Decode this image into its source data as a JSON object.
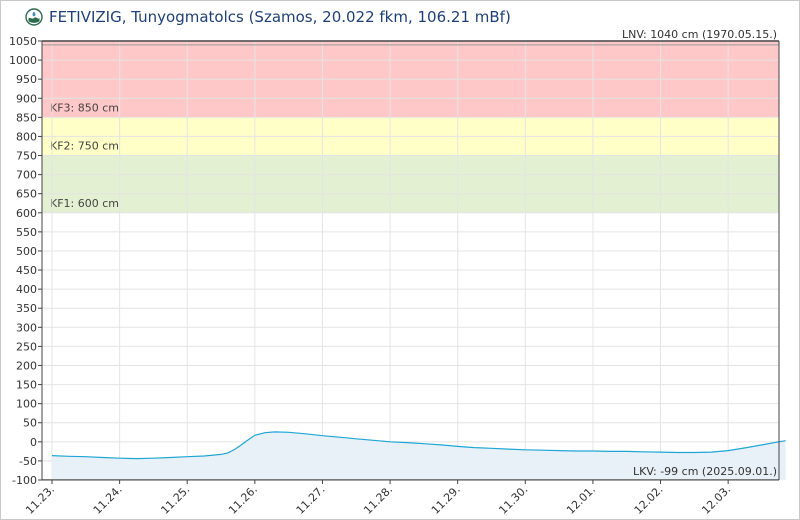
{
  "header": {
    "title": "FETIVIZIG, Tunyogmatolcs (Szamos, 20.022 fkm, 106.21 mBf)",
    "logo_icon": "water-drop-logo-icon"
  },
  "colors": {
    "kf3_zone": "#ffc8c8",
    "kf2_zone": "#ffffc8",
    "kf1_zone": "#e3f0d2",
    "series_line": "#1fa6d6",
    "series_fill": "#e9f1f8",
    "grid": "#e4e4e4",
    "axis": "#444444"
  },
  "chart_data": {
    "type": "area",
    "title": "",
    "xlabel": "",
    "ylabel": "",
    "ylim": [
      -100,
      1050
    ],
    "ystep": 50,
    "grid": true,
    "x_tick_labels": [
      "11.23.",
      "11.24.",
      "11.25.",
      "11.26.",
      "11.27.",
      "11.28.",
      "11.29.",
      "11.30.",
      "12.01.",
      "12.02.",
      "12.03."
    ],
    "x_range_days": [
      0,
      10.9
    ],
    "zones": [
      {
        "name": "KF1",
        "label": "KF1: 600 cm",
        "from": 600,
        "to": 750,
        "color_key": "kf1_zone"
      },
      {
        "name": "KF2",
        "label": "KF2: 750 cm",
        "from": 750,
        "to": 850,
        "color_key": "kf2_zone"
      },
      {
        "name": "KF3",
        "label": "KF3: 850 cm",
        "from": 850,
        "to": 1050,
        "color_key": "kf3_zone"
      }
    ],
    "reference_lines": [
      {
        "label": "LNV: 1040 cm (1970.05.15.)",
        "value": 1040,
        "position": "top-right"
      },
      {
        "label": "LKV: -99 cm (2025.09.01.)",
        "value": -99,
        "position": "bottom-right"
      }
    ],
    "series": [
      {
        "x": [
          0,
          0.25,
          0.5,
          0.75,
          1.0,
          1.25,
          1.5,
          1.75,
          2.0,
          2.25,
          2.5,
          2.6,
          2.7,
          2.8,
          2.9,
          3.0,
          3.15,
          3.3,
          3.5,
          3.75,
          4.0,
          4.25,
          4.5,
          4.75,
          5.0,
          5.25,
          5.5,
          5.75,
          6.0,
          6.25,
          6.5,
          6.75,
          7.0,
          7.25,
          7.5,
          7.75,
          8.0,
          8.25,
          8.5,
          8.75,
          9.0,
          9.25,
          9.5,
          9.75,
          10.0,
          10.25,
          10.5,
          10.75,
          10.85
        ],
        "values": [
          -36,
          -38,
          -39,
          -41,
          -43,
          -44,
          -43,
          -41,
          -39,
          -37,
          -33,
          -29,
          -20,
          -8,
          5,
          17,
          24,
          26,
          25,
          21,
          16,
          12,
          8,
          4,
          0,
          -2,
          -5,
          -8,
          -12,
          -15,
          -17,
          -19,
          -21,
          -22,
          -23,
          -24,
          -24,
          -25,
          -25,
          -26,
          -27,
          -28,
          -28,
          -27,
          -23,
          -16,
          -8,
          0,
          3
        ]
      }
    ]
  }
}
